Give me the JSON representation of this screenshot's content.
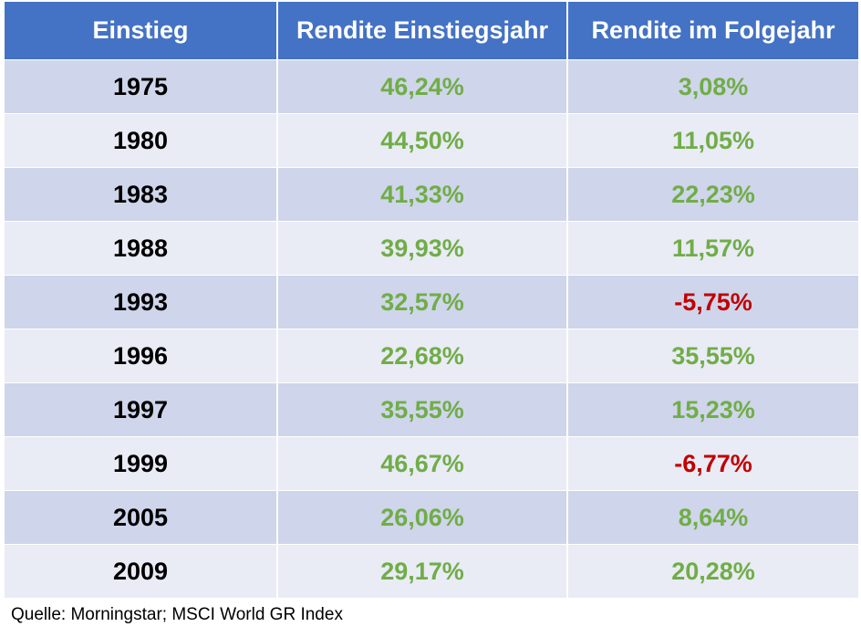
{
  "table": {
    "headers": [
      "Einstieg",
      "Rendite Einstiegsjahr",
      "Rendite im Folgejahr"
    ],
    "rows": [
      {
        "year": "1975",
        "entry_return": "46,24%",
        "next_return": "3,08%",
        "next_negative": false
      },
      {
        "year": "1980",
        "entry_return": "44,50%",
        "next_return": "11,05%",
        "next_negative": false
      },
      {
        "year": "1983",
        "entry_return": "41,33%",
        "next_return": "22,23%",
        "next_negative": false
      },
      {
        "year": "1988",
        "entry_return": "39,93%",
        "next_return": "11,57%",
        "next_negative": false
      },
      {
        "year": "1993",
        "entry_return": "32,57%",
        "next_return": "-5,75%",
        "next_negative": true
      },
      {
        "year": "1996",
        "entry_return": "22,68%",
        "next_return": "35,55%",
        "next_negative": false
      },
      {
        "year": "1997",
        "entry_return": "35,55%",
        "next_return": "15,23%",
        "next_negative": false
      },
      {
        "year": "1999",
        "entry_return": "46,67%",
        "next_return": "-6,77%",
        "next_negative": true
      },
      {
        "year": "2005",
        "entry_return": "26,06%",
        "next_return": "8,64%",
        "next_negative": false
      },
      {
        "year": "2009",
        "entry_return": "29,17%",
        "next_return": "20,28%",
        "next_negative": false
      }
    ]
  },
  "source": "Quelle: Morningstar; MSCI World GR Index",
  "colors": {
    "header_bg": "#4472c4",
    "row_dark": "#cfd5ea",
    "row_light": "#e9ebf5",
    "positive": "#70ad47",
    "negative": "#c00000"
  }
}
